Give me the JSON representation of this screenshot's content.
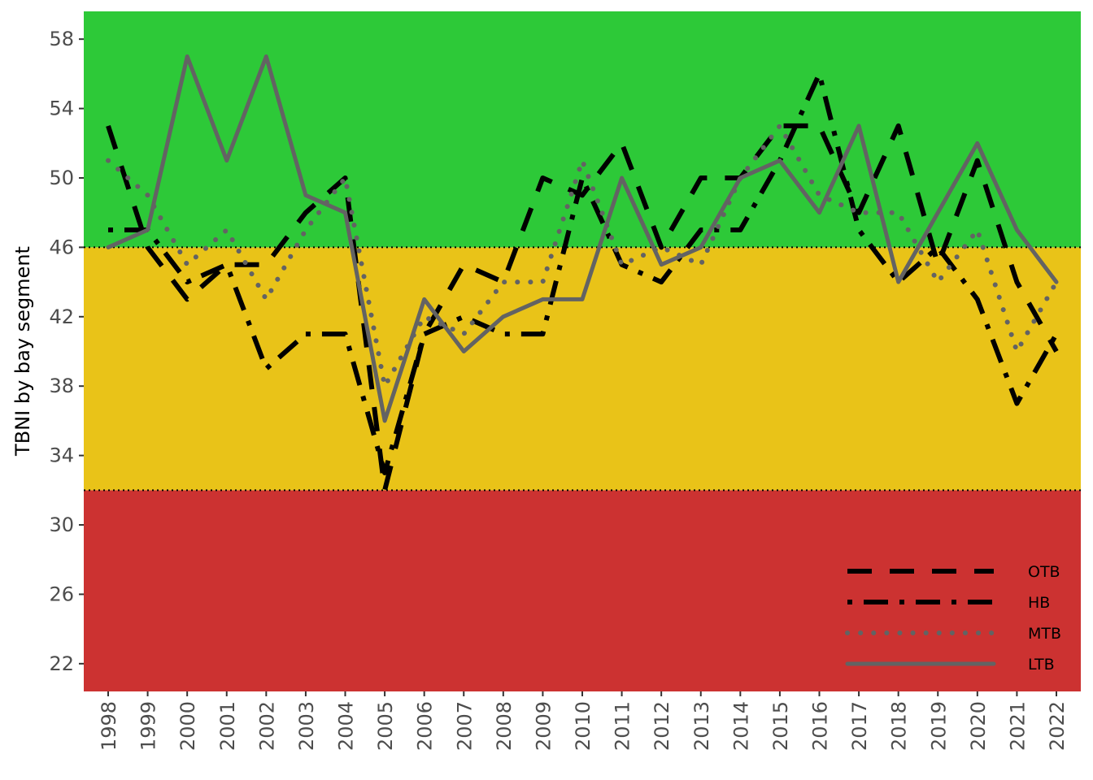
{
  "chart_data": {
    "type": "line",
    "ylabel": "TBNI by bay segment",
    "xlabel": "",
    "ylim": [
      20.4,
      59.6
    ],
    "yticks": [
      22,
      26,
      30,
      34,
      38,
      42,
      46,
      50,
      54,
      58
    ],
    "x": [
      "1998",
      "1999",
      "2000",
      "2001",
      "2002",
      "2003",
      "2004",
      "2005",
      "2006",
      "2007",
      "2008",
      "2009",
      "2010",
      "2011",
      "2012",
      "2013",
      "2014",
      "2015",
      "2016",
      "2017",
      "2018",
      "2019",
      "2020",
      "2021",
      "2022"
    ],
    "bands": [
      {
        "from": 20.4,
        "to": 32,
        "color": "#cc3231"
      },
      {
        "from": 32,
        "to": 46,
        "color": "#e9c318"
      },
      {
        "from": 46,
        "to": 59.6,
        "color": "#2dc938"
      }
    ],
    "thresholds": [
      32,
      46
    ],
    "legend_position": "bottom-right",
    "series": [
      {
        "name": "OTB",
        "color": "#000000",
        "dash": "longdash",
        "values": [
          53,
          46,
          43,
          45,
          45,
          48,
          50,
          32,
          41,
          45,
          44,
          50,
          49,
          52,
          46,
          50,
          50,
          53,
          53,
          48,
          53,
          45,
          51,
          44,
          40
        ]
      },
      {
        "name": "HB",
        "color": "#000000",
        "dash": "dotdash",
        "values": [
          47,
          47,
          44,
          45,
          39,
          41,
          41,
          33,
          41,
          42,
          41,
          41,
          50,
          45,
          44,
          47,
          47,
          51,
          56,
          47,
          44,
          46,
          43,
          37,
          41
        ]
      },
      {
        "name": "MTB",
        "color": "#636363",
        "dash": "dotted",
        "values": [
          51,
          49,
          45,
          47,
          43,
          47,
          50,
          38,
          42,
          41,
          44,
          44,
          51,
          45,
          46,
          45,
          50,
          53,
          49,
          48,
          48,
          44,
          47,
          40,
          44
        ]
      },
      {
        "name": "LTB",
        "color": "#636363",
        "dash": "solid",
        "values": [
          46,
          47,
          57,
          51,
          57,
          49,
          48,
          36,
          43,
          40,
          42,
          43,
          43,
          50,
          45,
          46,
          50,
          51,
          48,
          53,
          44,
          48,
          52,
          47,
          44
        ]
      }
    ]
  }
}
